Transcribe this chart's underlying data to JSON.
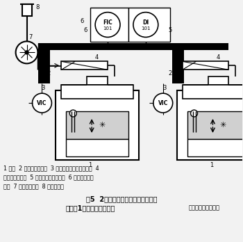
{
  "bg_color": "#f2f2f2",
  "caption_line1": "1 拉窗  2 卷轴行程传感器  3 风量（风速）显示控制器  4",
  "caption_line2": "文丘里变风量阀  5 风量量加计算给定器  6 总风量显示控",
  "caption_line3": "制器  7 变频调速风机  8 直冲式风帽",
  "fig_caption": "图5  2台变风量排风柜采用变风量阀",
  "fig_caption2": "并联于1个系统的基本控制",
  "fig_caption3": "管理暨室设计与建设"
}
